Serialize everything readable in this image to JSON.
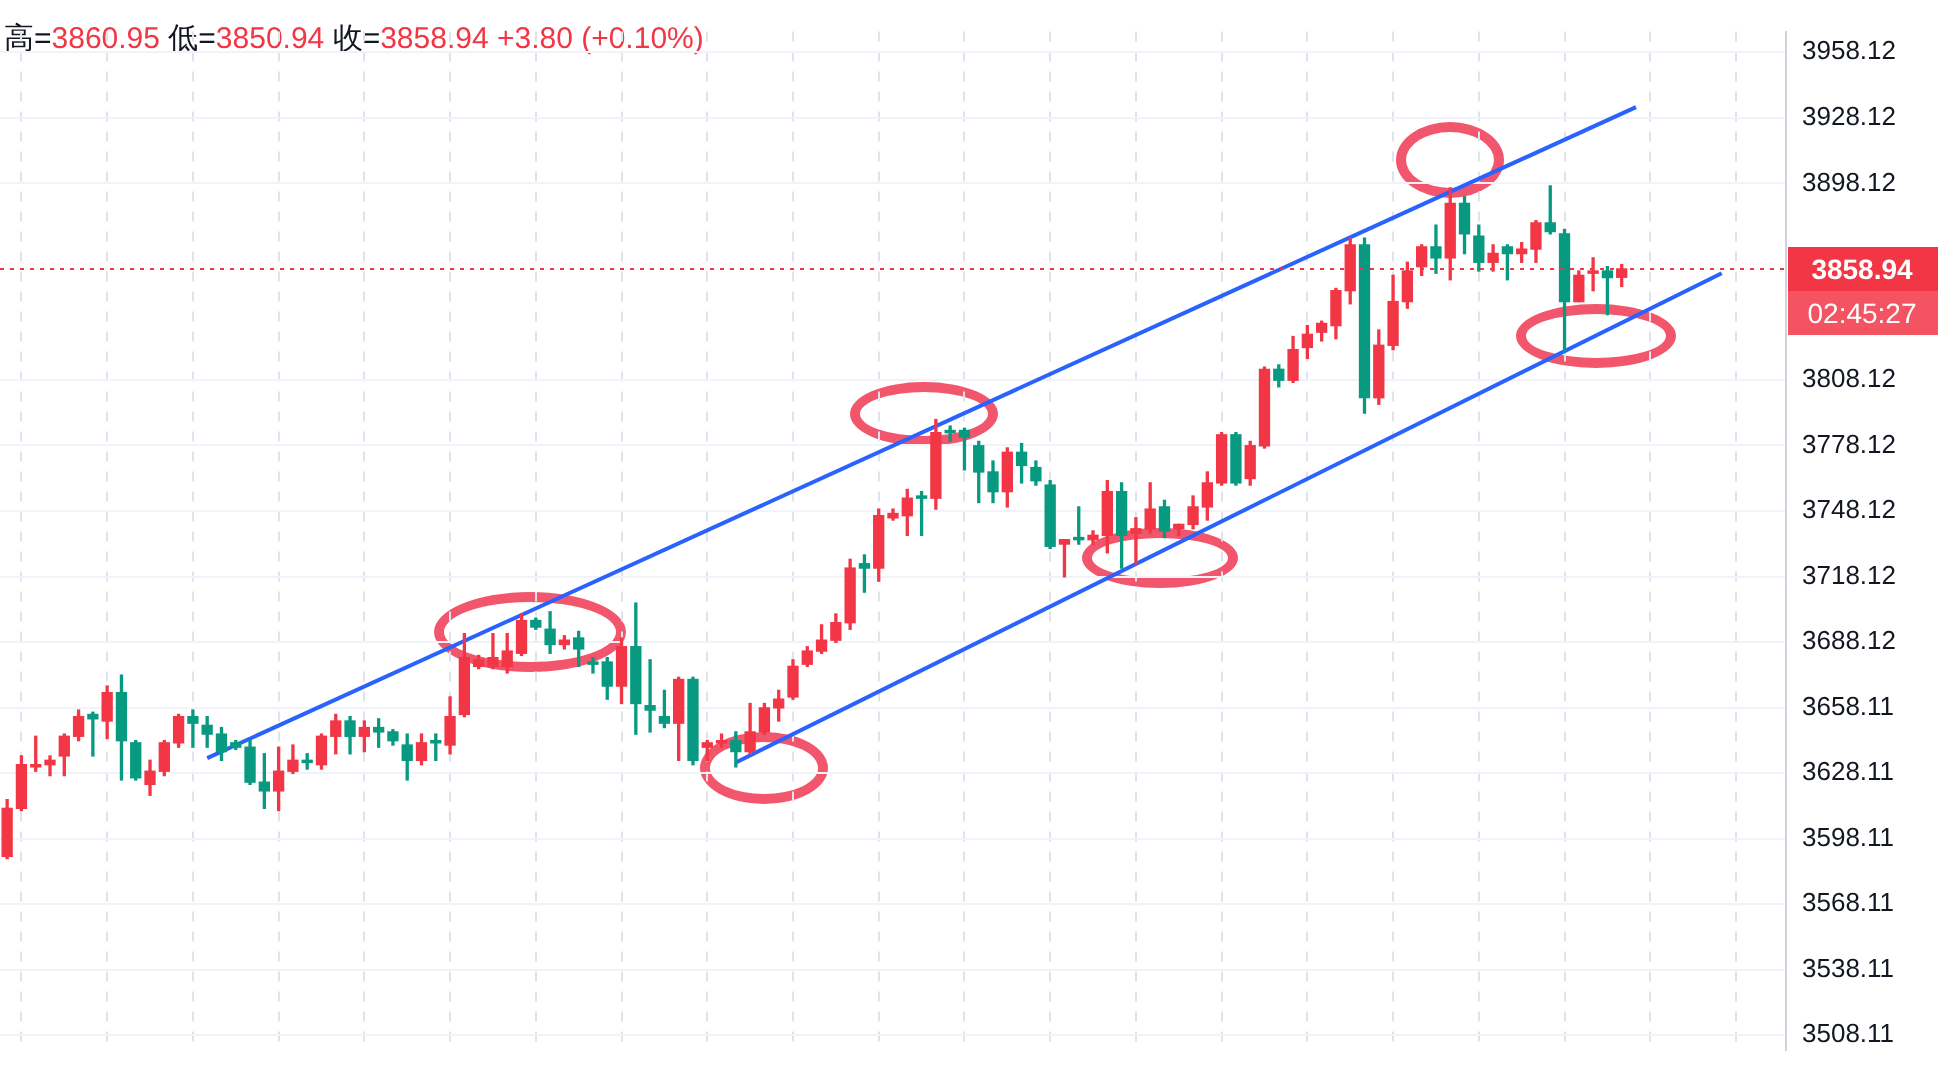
{
  "chart_data": {
    "type": "candlestick",
    "categories": [
      null,
      null,
      null,
      null,
      null,
      null,
      null,
      null,
      null,
      null,
      null,
      null,
      null,
      null,
      null,
      null,
      null,
      null,
      null,
      null,
      null,
      null,
      null,
      null,
      null,
      null,
      null,
      null,
      null,
      null,
      null,
      null,
      null,
      null,
      null,
      null,
      null,
      null,
      null,
      null,
      null,
      null,
      null,
      null,
      null,
      null,
      null,
      null,
      null,
      null,
      null,
      null,
      null,
      null,
      null,
      null,
      null,
      null,
      null,
      null,
      null,
      null,
      null,
      null,
      null,
      null,
      null,
      null,
      null,
      null,
      null,
      null,
      null,
      null,
      null,
      null,
      null,
      null,
      null,
      null,
      null,
      null,
      null,
      null,
      null,
      null,
      null,
      null,
      null,
      null,
      null,
      null,
      null,
      null,
      null,
      null,
      null,
      null,
      null,
      null,
      null,
      null,
      null,
      null,
      null,
      null,
      null,
      null,
      null,
      null,
      null,
      null,
      null,
      null,
      null,
      null,
      null,
      null,
      null,
      null,
      null,
      null,
      null,
      null,
      null
    ],
    "ohlc": [
      [
        3590,
        3616,
        3589,
        3612
      ],
      [
        3612,
        3636,
        3611,
        3632
      ],
      [
        3631,
        3645,
        3629,
        3632
      ],
      [
        3632,
        3636,
        3627,
        3634
      ],
      [
        3636,
        3646,
        3627,
        3645
      ],
      [
        3645,
        3657,
        3643,
        3654
      ],
      [
        3655,
        3656,
        3636,
        3653
      ],
      [
        3652,
        3668,
        3644,
        3665
      ],
      [
        3665,
        3673,
        3625,
        3643
      ],
      [
        3642,
        3643,
        3625,
        3626
      ],
      [
        3623,
        3634,
        3618,
        3629
      ],
      [
        3629,
        3643,
        3627,
        3642
      ],
      [
        3642,
        3655,
        3640,
        3654
      ],
      [
        3654,
        3657,
        3640,
        3651
      ],
      [
        3650,
        3654,
        3640,
        3646
      ],
      [
        3646,
        3649,
        3634,
        3638
      ],
      [
        3642,
        3643,
        3639,
        3640
      ],
      [
        3640,
        3643,
        3623,
        3624
      ],
      [
        3624,
        3637,
        3612,
        3620
      ],
      [
        3620,
        3640,
        3611,
        3629
      ],
      [
        3629,
        3641,
        3628,
        3634
      ],
      [
        3634,
        3637,
        3630,
        3633
      ],
      [
        3632,
        3646,
        3630,
        3645
      ],
      [
        3645,
        3655,
        3637,
        3652
      ],
      [
        3652,
        3654,
        3637,
        3645
      ],
      [
        3645,
        3652,
        3638,
        3649
      ],
      [
        3649,
        3653,
        3640,
        3647
      ],
      [
        3647,
        3648,
        3641,
        3643
      ],
      [
        3641,
        3646,
        3625,
        3634
      ],
      [
        3634,
        3646,
        3632,
        3642
      ],
      [
        3643,
        3646,
        3634,
        3642
      ],
      [
        3641,
        3663,
        3637,
        3654
      ],
      [
        3655,
        3692,
        3654,
        3681
      ],
      [
        3677,
        3682,
        3676,
        3680
      ],
      [
        3677,
        3692,
        3676,
        3681
      ],
      [
        3677,
        3692,
        3674,
        3684
      ],
      [
        3683,
        3701,
        3682,
        3698
      ],
      [
        3698,
        3699,
        3694,
        3695
      ],
      [
        3694,
        3702,
        3683,
        3687
      ],
      [
        3687,
        3691,
        3685,
        3689
      ],
      [
        3690,
        3693,
        3677,
        3685
      ],
      [
        3679,
        3681,
        3674,
        3678
      ],
      [
        3679,
        3681,
        3662,
        3668
      ],
      [
        3668,
        3690,
        3660,
        3686
      ],
      [
        3686,
        3706,
        3646,
        3660
      ],
      [
        3659,
        3680,
        3647,
        3657
      ],
      [
        3654,
        3666,
        3649,
        3651
      ],
      [
        3651,
        3672,
        3634,
        3671
      ],
      [
        3671,
        3672,
        3632,
        3634
      ],
      [
        3640,
        3643,
        3634,
        3642
      ],
      [
        3642,
        3646,
        3640,
        3643
      ],
      [
        3643,
        3647,
        3631,
        3638
      ],
      [
        3638,
        3660,
        3637,
        3647
      ],
      [
        3647,
        3660,
        3646,
        3658
      ],
      [
        3658,
        3666,
        3652,
        3662
      ],
      [
        3663,
        3680,
        3662,
        3677
      ],
      [
        3678,
        3686,
        3677,
        3684
      ],
      [
        3684,
        3696,
        3683,
        3689
      ],
      [
        3689,
        3701,
        3688,
        3697
      ],
      [
        3697,
        3726,
        3694,
        3722
      ],
      [
        3724,
        3728,
        3711,
        3722
      ],
      [
        3722,
        3749,
        3716,
        3746
      ],
      [
        3745,
        3749,
        3744,
        3747
      ],
      [
        3746,
        3758,
        3737,
        3754
      ],
      [
        3755,
        3757,
        3737,
        3754
      ],
      [
        3754,
        3790,
        3749,
        3784
      ],
      [
        3785,
        3787,
        3780,
        3784
      ],
      [
        3785,
        3786,
        3767,
        3782
      ],
      [
        3778,
        3780,
        3752,
        3766
      ],
      [
        3766,
        3771,
        3752,
        3757
      ],
      [
        3757,
        3777,
        3750,
        3775
      ],
      [
        3775,
        3779,
        3761,
        3769
      ],
      [
        3768,
        3771,
        3760,
        3762
      ],
      [
        3760,
        3762,
        3731,
        3732
      ],
      [
        3733,
        3735,
        3718,
        3735
      ],
      [
        3736,
        3750,
        3733,
        3735
      ],
      [
        3735,
        3739,
        3733,
        3737
      ],
      [
        3737,
        3762,
        3729,
        3757
      ],
      [
        3757,
        3761,
        3722,
        3737
      ],
      [
        3738,
        3745,
        3724,
        3740
      ],
      [
        3740,
        3761,
        3738,
        3749
      ],
      [
        3750,
        3753,
        3736,
        3739
      ],
      [
        3740,
        3742,
        3737,
        3742
      ],
      [
        3742,
        3755,
        3740,
        3750
      ],
      [
        3750,
        3766,
        3744,
        3761
      ],
      [
        3761,
        3784,
        3760,
        3783
      ],
      [
        3783,
        3784,
        3760,
        3761
      ],
      [
        3763,
        3780,
        3760,
        3778
      ],
      [
        3778,
        3814,
        3777,
        3813
      ],
      [
        3813,
        3815,
        3805,
        3808
      ],
      [
        3808,
        3828,
        3807,
        3822
      ],
      [
        3823,
        3833,
        3818,
        3829
      ],
      [
        3830,
        3835,
        3826,
        3834
      ],
      [
        3833,
        3850,
        3827,
        3849
      ],
      [
        3849,
        3873,
        3843,
        3870
      ],
      [
        3870,
        3873,
        3793,
        3800
      ],
      [
        3800,
        3831,
        3797,
        3824
      ],
      [
        3824,
        3856,
        3822,
        3844
      ],
      [
        3844,
        3862,
        3841,
        3858
      ],
      [
        3860,
        3870,
        3856,
        3869
      ],
      [
        3869,
        3879,
        3857,
        3864
      ],
      [
        3864,
        3896,
        3854,
        3889
      ],
      [
        3889,
        3892,
        3866,
        3875
      ],
      [
        3874,
        3879,
        3858,
        3862
      ],
      [
        3862,
        3870,
        3858,
        3866
      ],
      [
        3869,
        3870,
        3854,
        3866
      ],
      [
        3866,
        3871,
        3862,
        3868
      ],
      [
        3868,
        3881,
        3862,
        3880
      ],
      [
        3880,
        3897,
        3875,
        3876
      ],
      [
        3875,
        3877,
        3821,
        3844
      ],
      [
        3844,
        3858,
        3844,
        3856
      ],
      [
        3857,
        3864,
        3849,
        3858
      ],
      [
        3858,
        3860,
        3838,
        3855
      ],
      [
        3855.14,
        3860.95,
        3850.94,
        3858.94
      ],
      null,
      null,
      null,
      null,
      null,
      null,
      null,
      null,
      null,
      null,
      null
    ],
    "colors": [
      "#f23645",
      "#f23645",
      "#f23645",
      "#f23645",
      "#f23645",
      "#f23645",
      "#089981",
      "#f23645",
      "#089981",
      "#089981",
      "#f23645",
      "#f23645",
      "#f23645",
      "#089981",
      "#089981",
      "#089981",
      "#089981",
      "#089981",
      "#089981",
      "#f23645",
      "#f23645",
      "#089981",
      "#f23645",
      "#f23645",
      "#089981",
      "#f23645",
      "#089981",
      "#089981",
      "#089981",
      "#f23645",
      "#089981",
      "#f23645",
      "#f23645",
      "#f23645",
      "#f23645",
      "#f23645",
      "#f23645",
      "#089981",
      "#089981",
      "#f23645",
      "#089981",
      "#089981",
      "#089981",
      "#f23645",
      "#089981",
      "#089981",
      "#089981",
      "#f23645",
      "#089981",
      "#f23645",
      "#f23645",
      "#089981",
      "#f23645",
      "#f23645",
      "#f23645",
      "#f23645",
      "#f23645",
      "#f23645",
      "#f23645",
      "#f23645",
      "#089981",
      "#f23645",
      "#f23645",
      "#f23645",
      "#089981",
      "#f23645",
      "#089981",
      "#089981",
      "#089981",
      "#089981",
      "#f23645",
      "#089981",
      "#089981",
      "#089981",
      "#f23645",
      "#089981",
      "#f23645",
      "#f23645",
      "#089981",
      "#f23645",
      "#f23645",
      "#089981",
      "#f23645",
      "#f23645",
      "#f23645",
      "#f23645",
      "#089981",
      "#f23645",
      "#f23645",
      "#089981",
      "#f23645",
      "#f23645",
      "#f23645",
      "#f23645",
      "#f23645",
      "#089981",
      "#f23645",
      "#f23645",
      "#f23645",
      "#f23645",
      "#089981",
      "#f23645",
      "#089981",
      "#089981",
      "#f23645",
      "#089981",
      "#f23645",
      "#f23645",
      "#089981",
      "#089981",
      "#f23645",
      "#f23645",
      "#089981",
      "#f23645",
      null,
      null,
      null,
      null,
      null,
      null,
      null,
      null,
      null,
      null,
      null
    ],
    "series": [
      {
        "type": "line",
        "color": "#2962ff",
        "values": [
          null,
          null,
          null,
          null,
          null,
          null,
          null,
          null,
          null,
          null,
          null,
          null,
          null,
          null,
          3635,
          null,
          null,
          null,
          null,
          null,
          null,
          null,
          null,
          null,
          null,
          null,
          null,
          null,
          null,
          null,
          null,
          null,
          null,
          null,
          null,
          null,
          null,
          null,
          null,
          null,
          null,
          null,
          null,
          null,
          null,
          null,
          null,
          null,
          null,
          null,
          null,
          null,
          null,
          null,
          null,
          null,
          null,
          null,
          null,
          null,
          null,
          null,
          null,
          null,
          null,
          null,
          null,
          null,
          null,
          null,
          null,
          null,
          null,
          null,
          null,
          null,
          null,
          null,
          null,
          null,
          null,
          null,
          null,
          null,
          null,
          null,
          null,
          null,
          null,
          null,
          null,
          null,
          null,
          null,
          null,
          null,
          null,
          null,
          null,
          null,
          null,
          null,
          null,
          null,
          null,
          null,
          null,
          null,
          null,
          null,
          null,
          null,
          null,
          null,
          3933,
          null,
          null,
          null,
          null,
          null,
          null,
          null,
          null,
          null,
          null
        ]
      },
      {
        "type": "line",
        "color": "#2962ff",
        "values": [
          null,
          null,
          null,
          null,
          null,
          null,
          null,
          null,
          null,
          null,
          null,
          null,
          null,
          null,
          null,
          null,
          null,
          null,
          null,
          null,
          null,
          null,
          null,
          null,
          null,
          null,
          null,
          null,
          null,
          null,
          null,
          null,
          null,
          null,
          null,
          null,
          null,
          null,
          null,
          null,
          null,
          null,
          null,
          null,
          null,
          null,
          null,
          null,
          null,
          null,
          null,
          3633,
          null,
          null,
          null,
          null,
          null,
          null,
          null,
          null,
          null,
          null,
          null,
          null,
          null,
          null,
          null,
          null,
          null,
          null,
          null,
          null,
          null,
          null,
          null,
          null,
          null,
          null,
          null,
          null,
          null,
          null,
          null,
          null,
          null,
          null,
          null,
          null,
          null,
          null,
          null,
          null,
          null,
          null,
          null,
          null,
          null,
          null,
          null,
          null,
          null,
          null,
          null,
          null,
          null,
          null,
          null,
          null,
          null,
          null,
          null,
          null,
          null,
          null,
          null,
          null,
          null,
          null,
          null,
          null,
          3857,
          null,
          null,
          null,
          null
        ]
      }
    ],
    "ylim": [
      3501.2,
      3967.6
    ],
    "yticks": [
      3958.12,
      3928.12,
      3898.12,
      3808.12,
      3778.12,
      3748.12,
      3718.12,
      3688.12,
      3658.11,
      3628.11,
      3598.11,
      3568.11,
      3538.11,
      3508.11
    ],
    "ref_lines": [
      {
        "axis": "y",
        "value": 3858.94,
        "label": "3858.94",
        "color": "#f23645",
        "line_style": "dotted"
      }
    ],
    "annotations": [
      "高=3860.95 低=3850.94 收=3858.94 +3.80 (+0.10%)",
      "02:45:27"
    ],
    "grid": true,
    "legend": false,
    "tick_labels": "y",
    "marker": "none",
    "line_style": "solid"
  }
}
